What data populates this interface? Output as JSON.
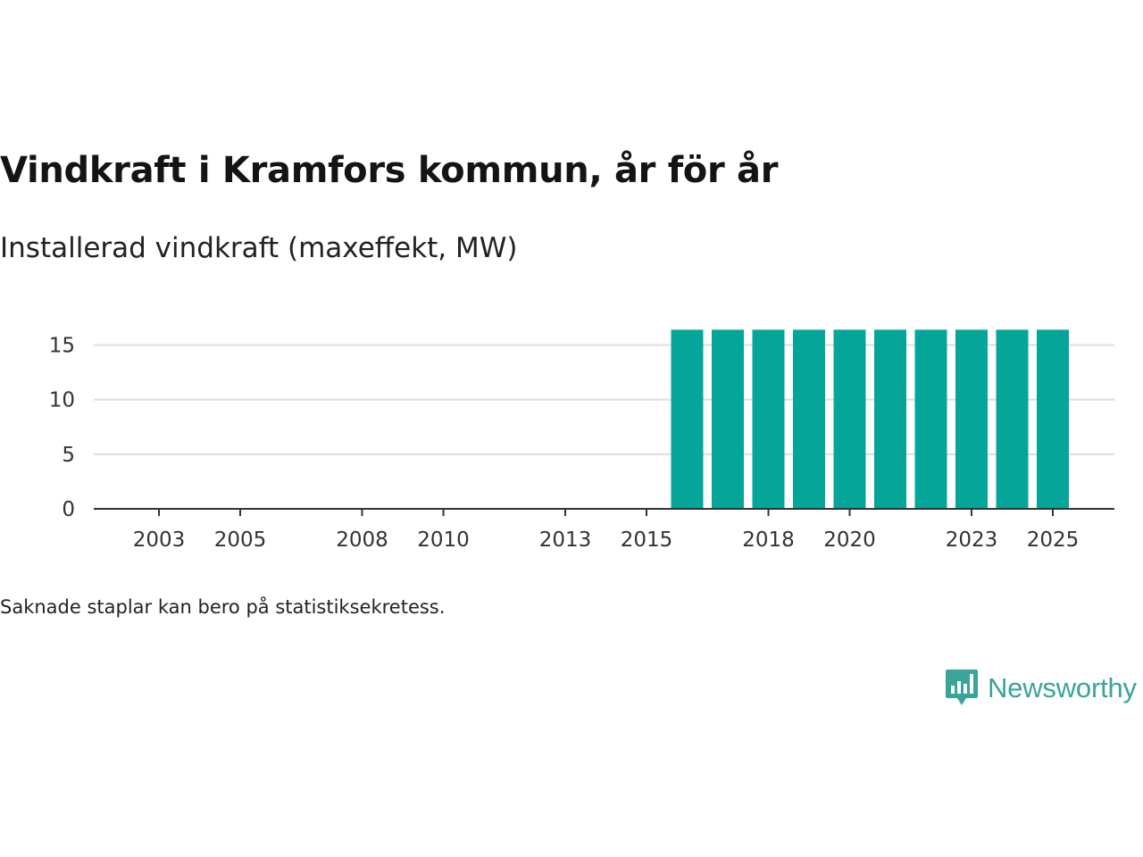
{
  "header": {
    "title": "Vindkraft i Kramfors kommun, år för år",
    "subtitle": "Installerad vindkraft (maxeffekt, MW)"
  },
  "footer": {
    "note": "Saknade staplar kan bero på statistiksekretess.",
    "brand": "Newsworthy"
  },
  "colors": {
    "bar": "#05a59a",
    "grid": "#dddddd",
    "axis": "#333333",
    "brand": "#3aa39a"
  },
  "chart_data": {
    "type": "bar",
    "title": "Vindkraft i Kramfors kommun, år för år",
    "subtitle": "Installerad vindkraft (maxeffekt, MW)",
    "xlabel": "",
    "ylabel": "",
    "categories": [
      2002,
      2003,
      2004,
      2005,
      2006,
      2007,
      2008,
      2009,
      2010,
      2011,
      2012,
      2013,
      2014,
      2015,
      2016,
      2017,
      2018,
      2019,
      2020,
      2021,
      2022,
      2023,
      2024,
      2025
    ],
    "values": [
      0,
      0,
      0,
      0,
      0,
      0,
      0,
      0,
      0,
      0,
      0,
      0,
      0,
      0,
      16.4,
      16.4,
      16.4,
      16.4,
      16.4,
      16.4,
      16.4,
      16.4,
      16.4,
      16.4
    ],
    "x_tick_labels": [
      "2003",
      "2005",
      "2008",
      "2010",
      "2013",
      "2015",
      "2018",
      "2020",
      "2023",
      "2025"
    ],
    "y_ticks": [
      0,
      5,
      10,
      15
    ],
    "ylim": [
      0,
      17
    ],
    "grid": true,
    "legend": "none"
  }
}
